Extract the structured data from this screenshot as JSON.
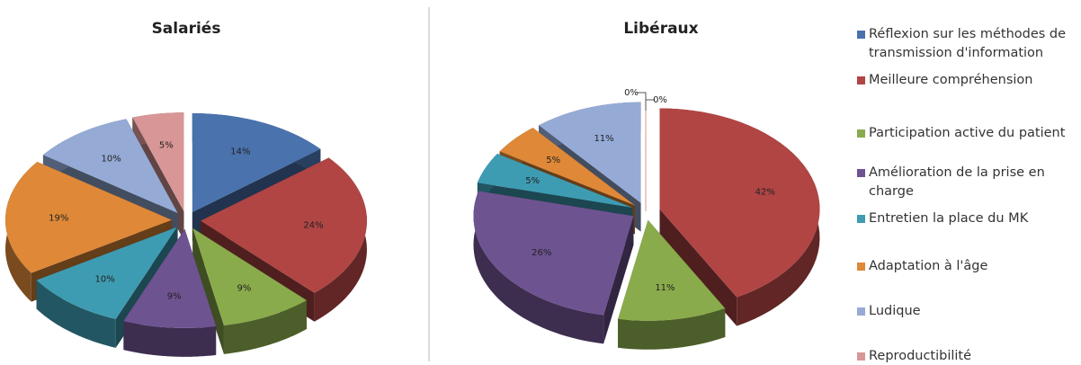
{
  "chart_data": {
    "type": "pie",
    "categories": [
      "Réflexion sur les méthodes de transmission d'information",
      "Meilleure compréhension",
      "Participation active du patient",
      "Amélioration de la prise en charge",
      "Entretien la place du MK",
      "Adaptation à l'âge",
      "Ludique",
      "Reproductibilité"
    ],
    "colors": [
      "#4a72ad",
      "#b04544",
      "#8aab4b",
      "#6e5391",
      "#3e9cb2",
      "#de8838",
      "#95abd6",
      "#d89696"
    ],
    "series": [
      {
        "name": "Salariés",
        "values": [
          14,
          24,
          9,
          9,
          10,
          19,
          10,
          5
        ],
        "value_labels": [
          "14%",
          "24%",
          "9%",
          "9%",
          "10%",
          "19%",
          "10%",
          "5%"
        ]
      },
      {
        "name": "Libéraux",
        "values": [
          0,
          42,
          11,
          26,
          5,
          5,
          11,
          0
        ],
        "value_labels": [
          "0%",
          "42%",
          "11%",
          "26%",
          "5%",
          "5%",
          "11%",
          "0%"
        ]
      }
    ]
  }
}
